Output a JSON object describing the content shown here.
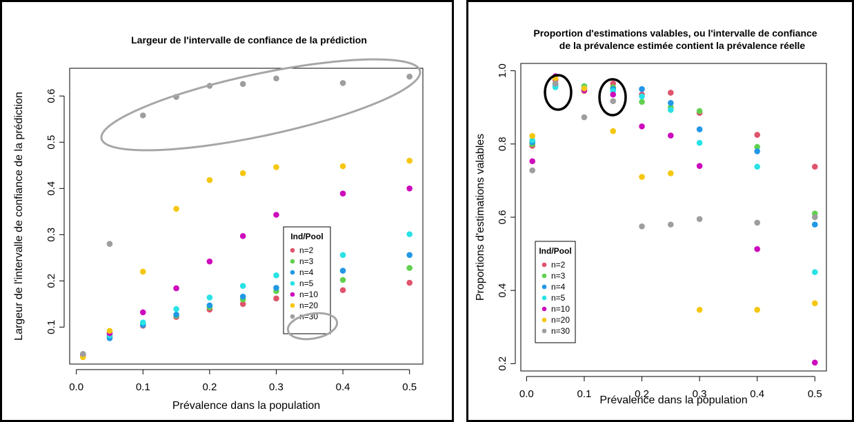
{
  "chart_data": [
    {
      "type": "scatter",
      "title": "Largeur de l'intervalle de confiance de la prédiction",
      "xlabel": "Prévalence dans la population",
      "ylabel": "Largeur de l'intervalle de confiance de la prédiction",
      "xlim": [
        -0.01,
        0.52
      ],
      "ylim": [
        0.02,
        0.66
      ],
      "x_ticks": [
        "0.0",
        "0.1",
        "0.2",
        "0.3",
        "0.4",
        "0.5"
      ],
      "y_ticks": [
        "0.1",
        "0.2",
        "0.3",
        "0.4",
        "0.5",
        "0.6"
      ],
      "legend": {
        "title": "Ind/Pool",
        "placement": "center-right"
      },
      "x": [
        0.01,
        0.05,
        0.1,
        0.15,
        0.2,
        0.25,
        0.3,
        0.4,
        0.5
      ],
      "series": [
        {
          "name": "n=2",
          "color": "#df536b",
          "values": [
            0.04,
            0.08,
            0.103,
            0.122,
            0.138,
            0.15,
            0.162,
            0.18,
            0.196
          ]
        },
        {
          "name": "n=3",
          "color": "#61d04f",
          "values": [
            0.04,
            0.08,
            0.105,
            0.125,
            0.143,
            0.16,
            0.178,
            0.202,
            0.228
          ]
        },
        {
          "name": "n=4",
          "color": "#2297e6",
          "values": [
            0.04,
            0.076,
            0.105,
            0.127,
            0.147,
            0.166,
            0.185,
            0.222,
            0.256
          ]
        },
        {
          "name": "n=5",
          "color": "#28e2e5",
          "values": [
            0.04,
            0.082,
            0.11,
            0.139,
            0.164,
            0.189,
            0.212,
            0.256,
            0.301
          ]
        },
        {
          "name": "n=10",
          "color": "#cd0bbc",
          "values": [
            0.04,
            0.087,
            0.132,
            0.184,
            0.242,
            0.297,
            0.343,
            0.389,
            0.4
          ]
        },
        {
          "name": "n=20",
          "color": "#f5c710",
          "values": [
            0.035,
            0.092,
            0.22,
            0.356,
            0.418,
            0.433,
            0.446,
            0.448,
            0.46
          ]
        },
        {
          "name": "n=30",
          "color": "#9e9e9e",
          "values": [
            0.042,
            0.28,
            0.558,
            0.598,
            0.622,
            0.626,
            0.638,
            0.628,
            0.642
          ]
        }
      ],
      "annotations": [
        {
          "shape": "ellipse",
          "color": "#a6a6a6",
          "note": "circles n=30 points"
        },
        {
          "shape": "ellipse",
          "color": "#a6a6a6",
          "note": "circles n=30 legend entry"
        }
      ]
    },
    {
      "type": "scatter",
      "title": "Proportion d'estimations valables, ou l'intervalle de confiance de la prévalence estimée contient la prévalence réelle",
      "title_lines": [
        "Proportion d'estimations valables, ou l'intervalle de confiance",
        "de la prévalence estimée contient la prévalence réelle"
      ],
      "xlabel": "Prévalence dans la population",
      "ylabel": "Proportions d'estimations valables",
      "xlim": [
        -0.01,
        0.52
      ],
      "ylim": [
        0.18,
        1.02
      ],
      "x_ticks": [
        "0.0",
        "0.1",
        "0.2",
        "0.3",
        "0.4",
        "0.5"
      ],
      "y_ticks": [
        "0.2",
        "0.4",
        "0.6",
        "0.8",
        "1.0"
      ],
      "legend": {
        "title": "Ind/Pool",
        "placement": "bottom-left"
      },
      "x": [
        0.01,
        0.05,
        0.1,
        0.15,
        0.2,
        0.25,
        0.3,
        0.4,
        0.5
      ],
      "series": [
        {
          "name": "n=2",
          "color": "#df536b",
          "values": [
            0.795,
            0.975,
            0.945,
            0.965,
            0.935,
            0.94,
            0.885,
            0.825,
            0.738
          ]
        },
        {
          "name": "n=3",
          "color": "#61d04f",
          "values": [
            0.8,
            0.965,
            0.958,
            0.955,
            0.915,
            0.9,
            0.89,
            0.792,
            0.61
          ]
        },
        {
          "name": "n=4",
          "color": "#2297e6",
          "values": [
            0.805,
            0.96,
            0.95,
            0.95,
            0.95,
            0.912,
            0.84,
            0.78,
            0.58
          ]
        },
        {
          "name": "n=5",
          "color": "#28e2e5",
          "values": [
            0.81,
            0.955,
            0.953,
            0.945,
            0.93,
            0.893,
            0.803,
            0.738,
            0.45
          ]
        },
        {
          "name": "n=10",
          "color": "#cd0bbc",
          "values": [
            0.753,
            0.985,
            0.948,
            0.935,
            0.848,
            0.823,
            0.74,
            0.513,
            0.203
          ]
        },
        {
          "name": "n=20",
          "color": "#f5c710",
          "values": [
            0.822,
            0.98,
            0.952,
            0.835,
            0.71,
            0.72,
            0.347,
            0.347,
            0.365
          ]
        },
        {
          "name": "n=30",
          "color": "#9e9e9e",
          "values": [
            0.728,
            0.965,
            0.873,
            0.917,
            0.575,
            0.58,
            0.595,
            0.585,
            0.6
          ]
        }
      ],
      "annotations": [
        {
          "shape": "ellipse",
          "color": "#000000",
          "note": "circles points at 0.05"
        },
        {
          "shape": "ellipse",
          "color": "#000000",
          "note": "circles points at 0.15"
        }
      ]
    }
  ]
}
